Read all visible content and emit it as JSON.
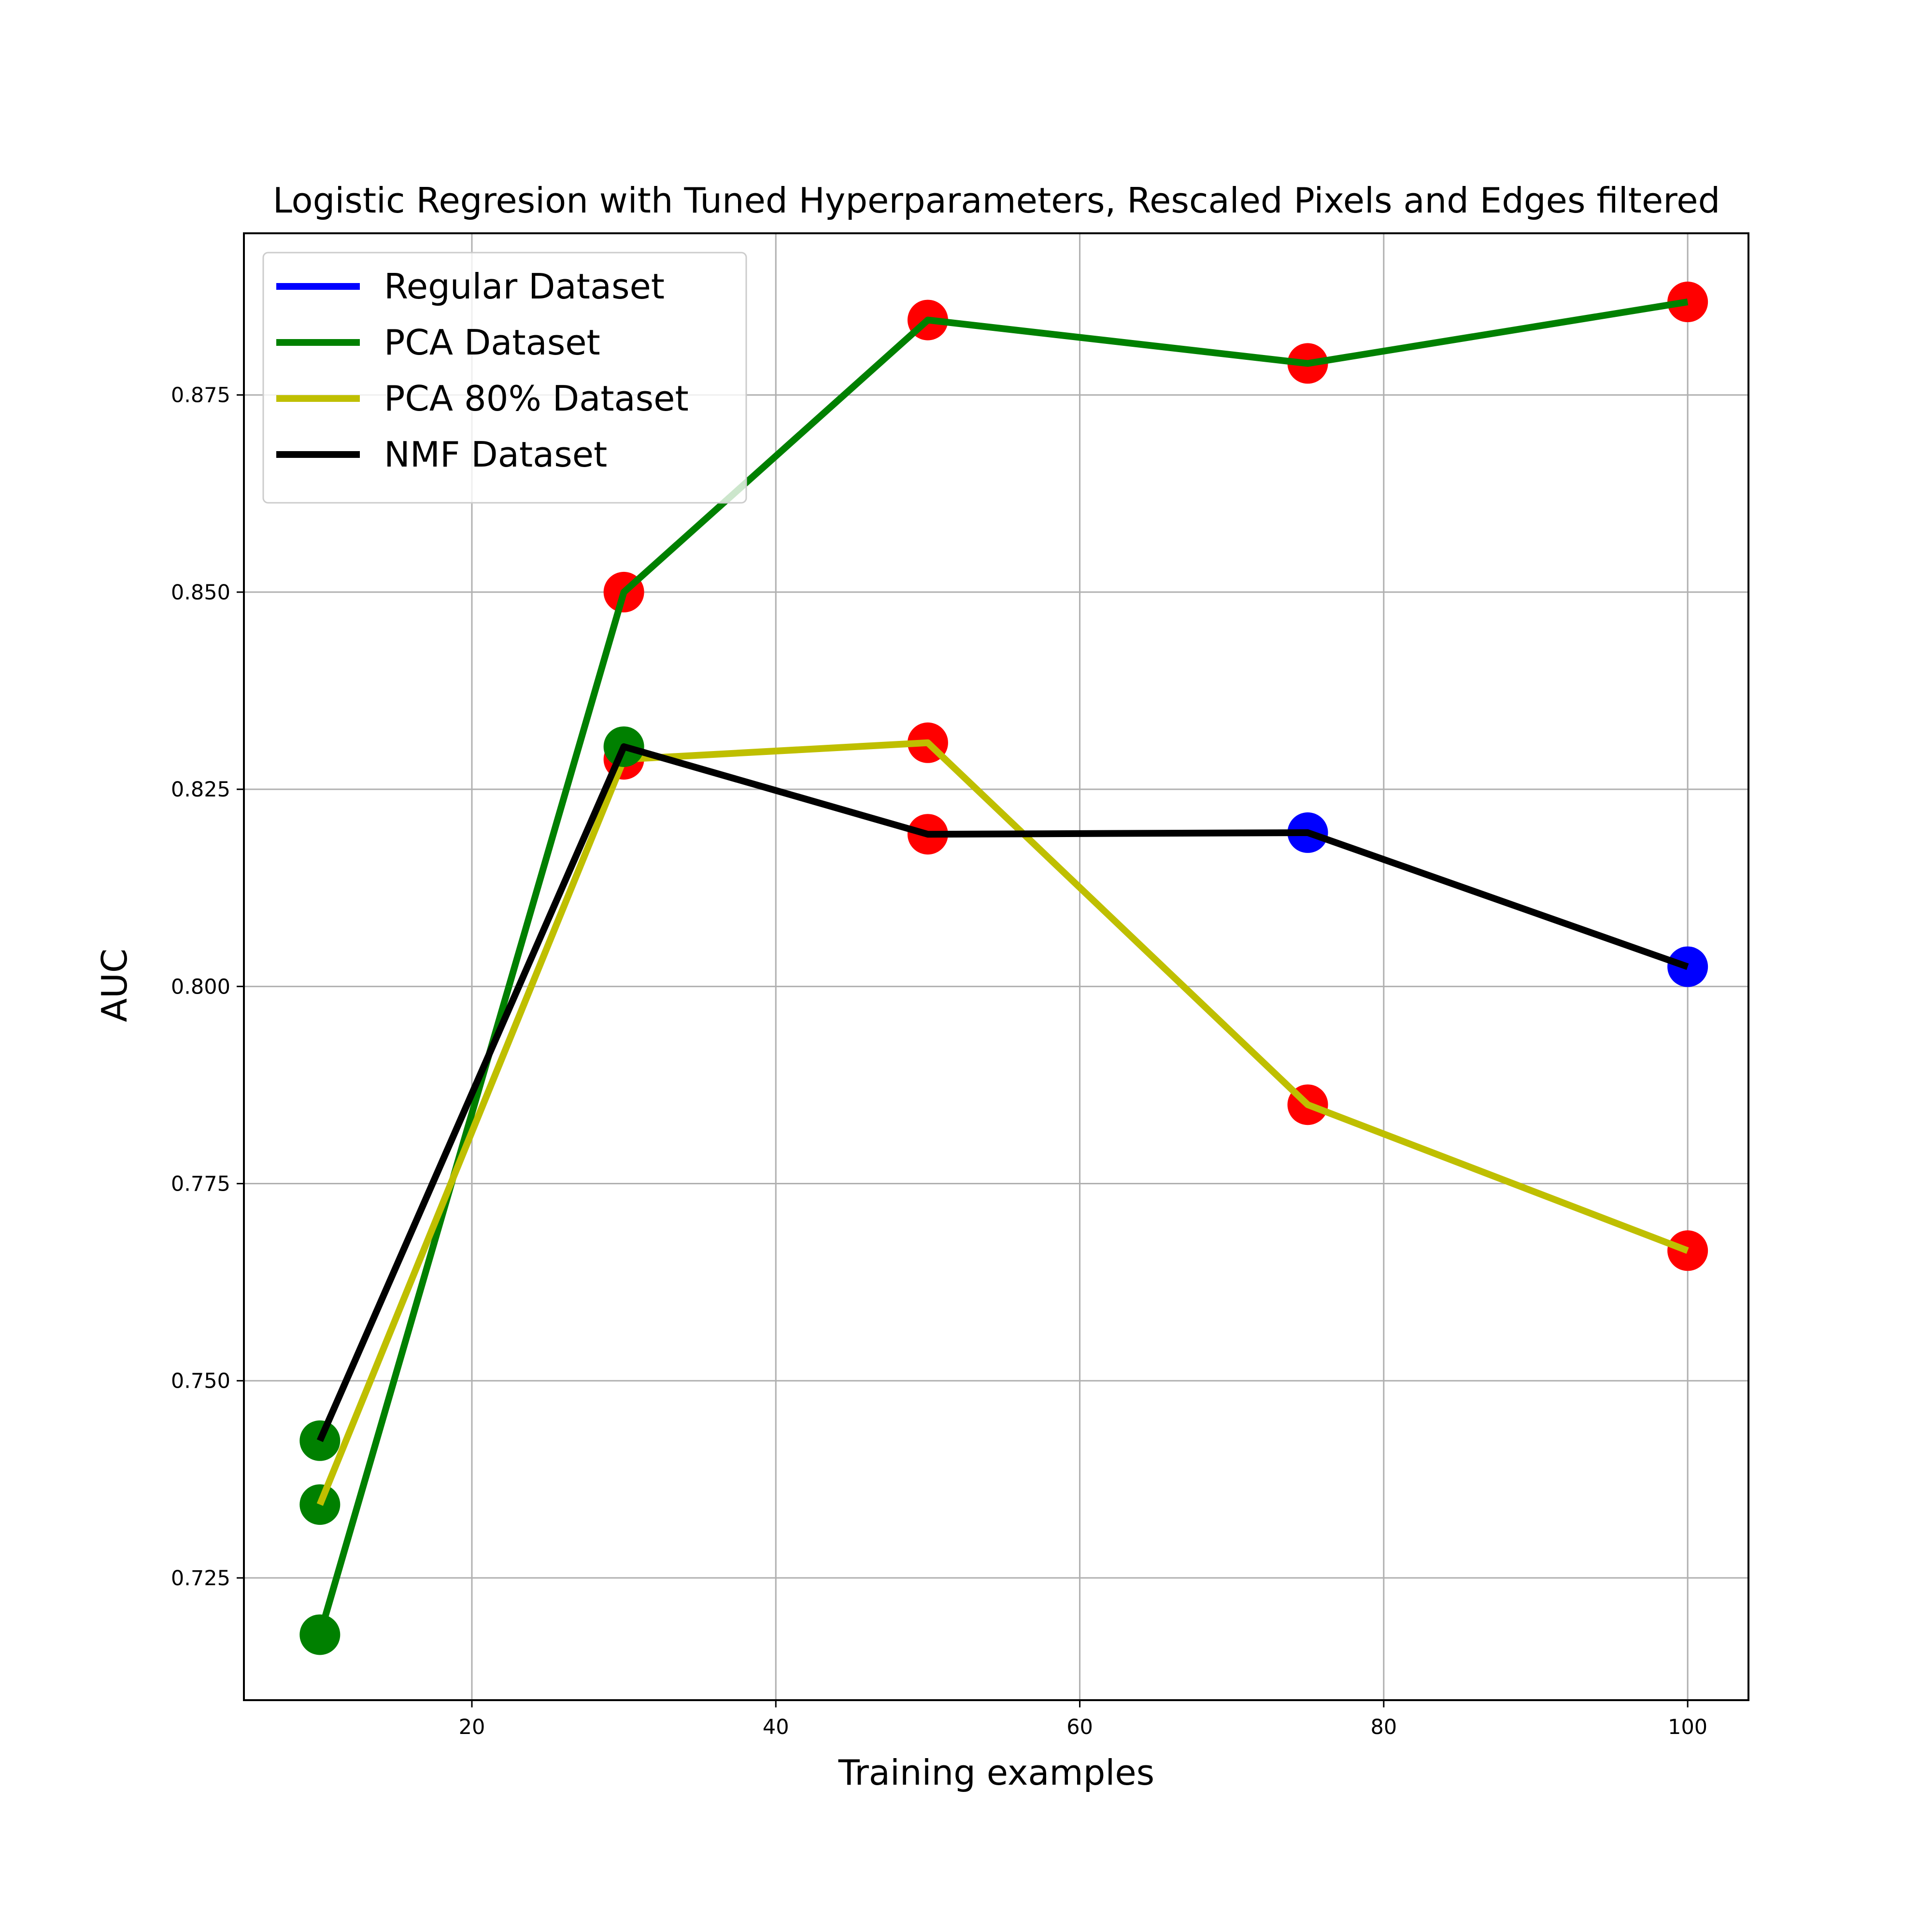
{
  "chart_data": {
    "type": "line",
    "title": "Logistic Regresion with Tuned Hyperparameters, Rescaled Pixels and Edges filtered",
    "xlabel": "Training examples",
    "ylabel": "AUC",
    "xlim": [
      5,
      104
    ],
    "ylim": [
      0.7095,
      0.8955
    ],
    "xticks": [
      20,
      40,
      60,
      80,
      100
    ],
    "xtick_labels": [
      "20",
      "40",
      "60",
      "80",
      "100"
    ],
    "yticks": [
      0.725,
      0.75,
      0.775,
      0.8,
      0.825,
      0.85,
      0.875
    ],
    "ytick_labels": [
      "0.725",
      "0.750",
      "0.775",
      "0.800",
      "0.825",
      "0.850",
      "0.875"
    ],
    "grid": true,
    "legend_position": "upper-left",
    "x": [
      10,
      30,
      50,
      75,
      100
    ],
    "series": [
      {
        "name": "Regular Dataset",
        "color": "#0000ff",
        "values": [
          0.7225,
          0.8505,
          0.8845,
          0.879,
          0.8875
        ],
        "marker_colors": []
      },
      {
        "name": "PCA Dataset",
        "color": "#008000",
        "values": [
          0.7178,
          0.85,
          0.8845,
          0.879,
          0.8868
        ],
        "marker_colors": [
          "#008000",
          "#ff0000",
          "#ff0000",
          "#ff0000",
          "#ff0000"
        ]
      },
      {
        "name": "PCA 80% Dataset",
        "color": "#bfbf00",
        "values": [
          0.7343,
          0.8288,
          0.8309,
          0.785,
          0.7665
        ],
        "marker_colors": [
          "#008000",
          "#ff0000",
          "#ff0000",
          "#ff0000",
          "#ff0000"
        ]
      },
      {
        "name": "NMF Dataset",
        "color": "#000000",
        "values": [
          0.7424,
          0.8304,
          0.8193,
          0.8195,
          0.8025
        ],
        "marker_colors": [
          "#008000",
          "#008000",
          "#ff0000",
          "#0000ff",
          "#0000ff"
        ]
      }
    ]
  }
}
